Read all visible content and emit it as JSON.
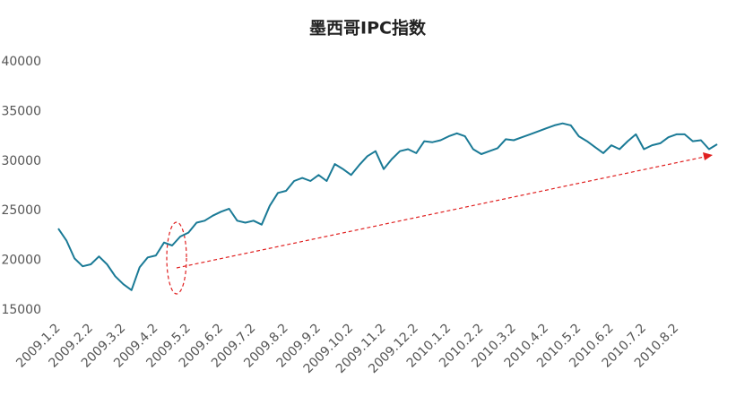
{
  "chart_data": {
    "type": "line",
    "title": "墨西哥IPC指数",
    "categories": [
      "2009.1.2",
      null,
      null,
      null,
      "2009.2.2",
      null,
      null,
      null,
      "2009.3.2",
      null,
      null,
      null,
      "2009.4.2",
      null,
      null,
      null,
      "2009.5.2",
      null,
      null,
      null,
      "2009.6.2",
      null,
      null,
      null,
      "2009.7.2",
      null,
      null,
      null,
      "2009.8.2",
      null,
      null,
      null,
      "2009.9.2",
      null,
      null,
      null,
      "2009.10.2",
      null,
      null,
      null,
      "2009.11.2",
      null,
      null,
      null,
      "2009.12.2",
      null,
      null,
      null,
      "2010.1.2",
      null,
      null,
      null,
      "2010.2.2",
      null,
      null,
      null,
      "2010.3.2",
      null,
      null,
      null,
      "2010.4.2",
      null,
      null,
      null,
      "2010.5.2",
      null,
      null,
      null,
      "2010.6.2",
      null,
      null,
      null,
      "2010.7.2",
      null,
      null,
      null,
      "2010.8.2",
      null,
      null,
      null,
      null,
      null
    ],
    "series": [
      {
        "name": "墨西哥IPC指数",
        "color": "#1a7a96",
        "values": [
          23200,
          22000,
          20200,
          19400,
          19600,
          20400,
          19600,
          18400,
          17600,
          17000,
          19300,
          20300,
          20500,
          21800,
          21500,
          22400,
          22800,
          23800,
          24000,
          24500,
          24900,
          25200,
          24000,
          23800,
          24000,
          23600,
          25500,
          26800,
          27000,
          28000,
          28300,
          28000,
          28600,
          28000,
          29700,
          29200,
          28600,
          29600,
          30500,
          31000,
          29200,
          30200,
          31000,
          31200,
          30800,
          32000,
          31900,
          32100,
          32500,
          32800,
          32500,
          31200,
          30700,
          31000,
          31300,
          32200,
          32100,
          32400,
          32700,
          33000,
          33300,
          33600,
          33800,
          33600,
          32500,
          32000,
          31400,
          30800,
          31600,
          31200,
          32000,
          32700,
          31200,
          31600,
          31800,
          32400,
          32700,
          32700,
          32000,
          32100,
          31200,
          31700
        ]
      }
    ],
    "ylim": [
      15000,
      40000
    ],
    "yticks": [
      15000,
      20000,
      25000,
      30000,
      35000,
      40000
    ],
    "grid": false
  }
}
